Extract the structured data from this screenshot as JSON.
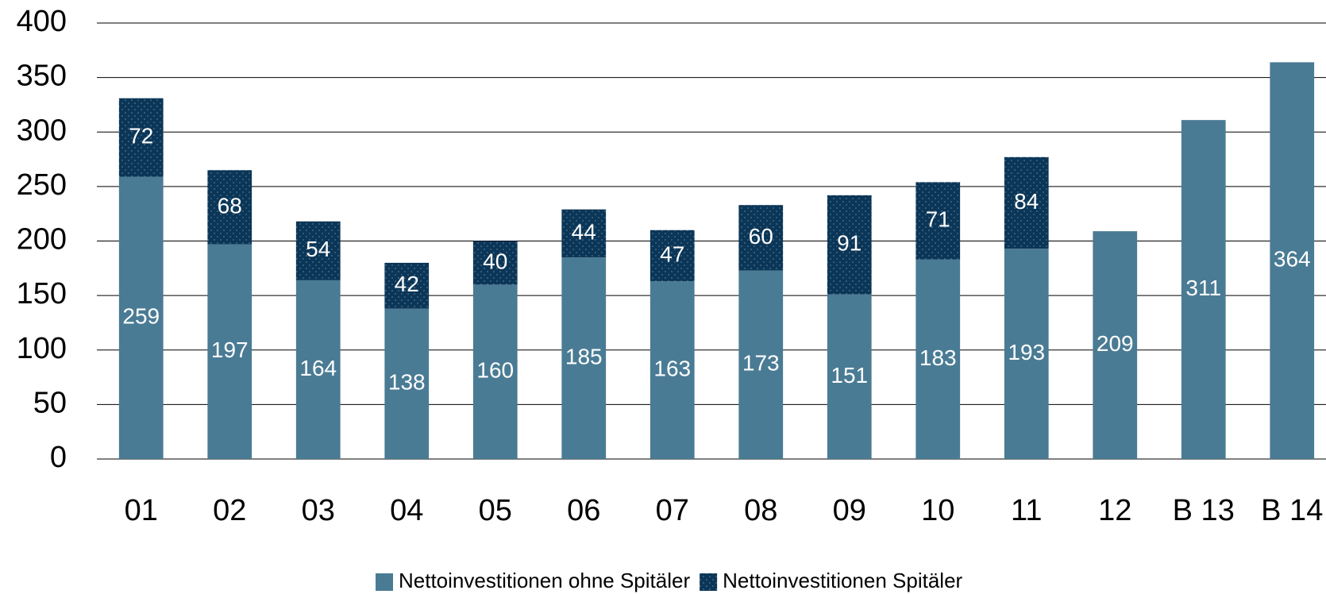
{
  "chart_data": {
    "type": "stacked_bar",
    "categories": [
      "01",
      "02",
      "03",
      "04",
      "05",
      "06",
      "07",
      "08",
      "09",
      "10",
      "11",
      "12",
      "B 13",
      "B 14"
    ],
    "series": [
      {
        "name": "Nettoinvestitionen ohne Spitäler",
        "color": "#4a7b94",
        "values": [
          259,
          197,
          164,
          138,
          160,
          185,
          163,
          173,
          151,
          183,
          193,
          209,
          311,
          364
        ]
      },
      {
        "name": "Nettoinvestitionen Spitäler",
        "color": "#0c3657",
        "values": [
          72,
          68,
          54,
          42,
          40,
          44,
          47,
          60,
          91,
          71,
          84,
          null,
          null,
          null
        ]
      }
    ],
    "ylim": [
      0,
      400
    ],
    "yticks": [
      0,
      50,
      100,
      150,
      200,
      250,
      300,
      350,
      400
    ],
    "grid": true,
    "legend": "bottom"
  }
}
